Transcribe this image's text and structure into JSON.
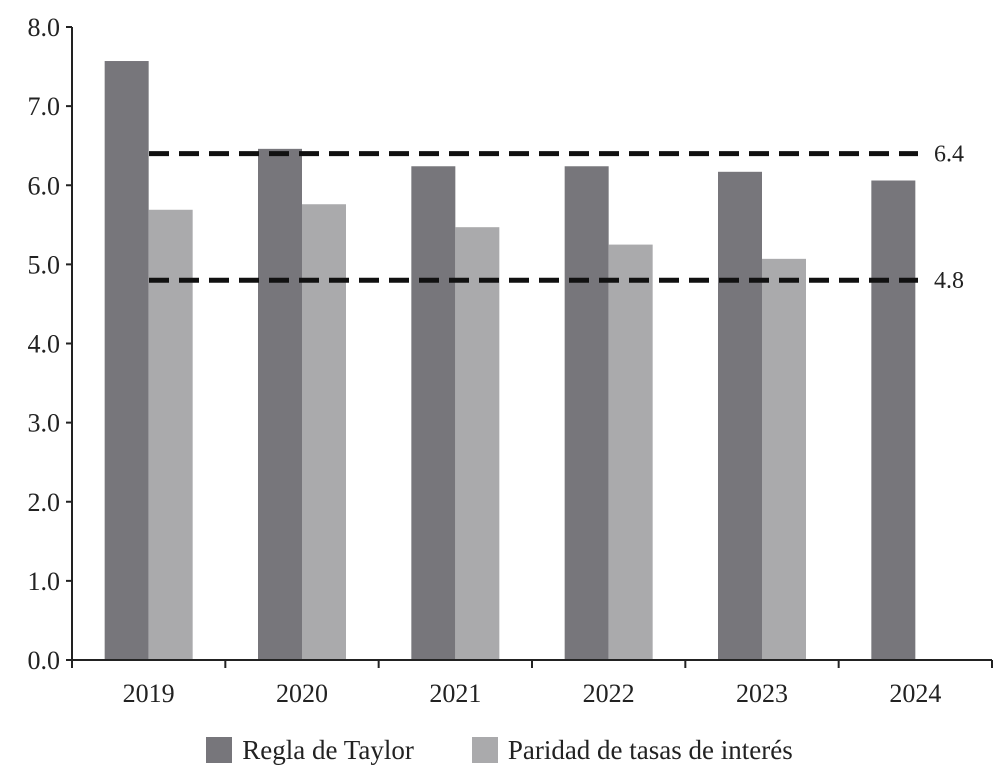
{
  "chart_data": {
    "type": "bar",
    "categories": [
      "2019",
      "2020",
      "2021",
      "2022",
      "2023",
      "2024"
    ],
    "series": [
      {
        "name": "Regla de Taylor",
        "values": [
          7.57,
          6.46,
          6.24,
          6.24,
          6.17,
          6.06
        ],
        "color": "#77767b"
      },
      {
        "name": "Paridad de tasas de interés",
        "values": [
          5.69,
          5.76,
          5.47,
          5.25,
          5.07,
          null
        ],
        "color": "#aaaaac"
      }
    ],
    "reference_lines": [
      {
        "value": 6.4,
        "label": "6.4"
      },
      {
        "value": 4.8,
        "label": "4.8"
      }
    ],
    "ylim": [
      0,
      8
    ],
    "yticks": [
      "0.0",
      "1.0",
      "2.0",
      "3.0",
      "4.0",
      "5.0",
      "6.0",
      "7.0",
      "8.0"
    ],
    "legend_position": "bottom",
    "grid": false
  }
}
